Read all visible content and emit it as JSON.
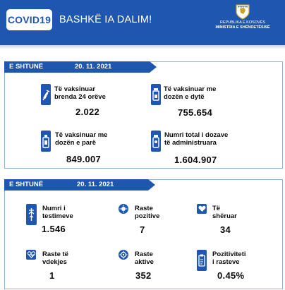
{
  "header": {
    "logo": "COVID19",
    "tagline": "BASHKË IA DALIM!",
    "ministry_line1": "REPUBLIKA E KOSOVËS",
    "ministry_line2": "MINISTRIA E SHËNDETËSISË"
  },
  "vaccination": {
    "day": "E SHTUNË",
    "date": "20. 11. 2021",
    "stats": [
      {
        "label_lines": [
          "Të vaksinuar",
          "brenda 24 orëve"
        ],
        "value": "2.022",
        "icon": "syringe-icon"
      },
      {
        "label_lines": [
          "Të vaksinuar me",
          "dozën e dytë"
        ],
        "value": "755.654",
        "icon": "vaccine-vials-icon"
      },
      {
        "label_lines": [
          "Të vaksinuar me",
          "dozën e parë"
        ],
        "value": "849.007",
        "icon": "vaccine-bottle-icon"
      },
      {
        "label_lines": [
          "Numri total i dozave",
          "të administruara"
        ],
        "value": "1.604.907",
        "icon": "medicine-bottle-icon"
      }
    ]
  },
  "cases": {
    "day": "E SHTUNË",
    "date": "20. 11. 2021",
    "stats": [
      {
        "label_lines": [
          "Numri i",
          "testimeve"
        ],
        "value": "1.546",
        "icon": "test-tube-icon"
      },
      {
        "label_lines": [
          "Raste",
          "pozitive"
        ],
        "value": "7",
        "icon": "virus-icon"
      },
      {
        "label_lines": [
          "Të",
          "shëruar"
        ],
        "value": "34",
        "icon": "heart-icon"
      },
      {
        "label_lines": [
          "Raste të",
          "vdekjes"
        ],
        "value": "1",
        "icon": "heartbeat-icon"
      },
      {
        "label_lines": [
          "Raste",
          "aktive"
        ],
        "value": "352",
        "icon": "virus-face-icon"
      },
      {
        "label_lines": [
          "Pozitiviteti",
          "i rasteve"
        ],
        "value": "0.45%",
        "icon": "clipboard-icon"
      }
    ]
  },
  "colors": {
    "brand_blue": "#1f57b0",
    "panel_border": "#8fb0db"
  }
}
